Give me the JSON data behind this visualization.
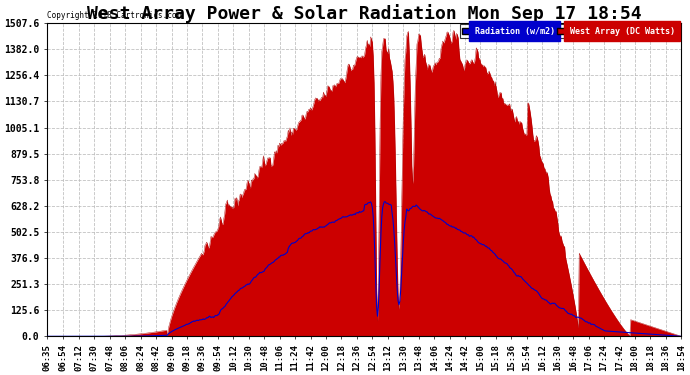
{
  "title": "West Array Power & Solar Radiation Mon Sep 17 18:54",
  "copyright": "Copyright 2018 Cartronics.com",
  "legend_radiation": "Radiation (w/m2)",
  "legend_west_array": "West Array (DC Watts)",
  "legend_radiation_bg": "#0000cc",
  "legend_west_array_bg": "#cc0000",
  "radiation_color": "#cc0000",
  "west_array_color": "#0000cc",
  "west_array_fill": "#cc0000",
  "yticks": [
    0.0,
    125.6,
    251.3,
    376.9,
    502.5,
    628.2,
    753.8,
    879.5,
    1005.1,
    1130.7,
    1256.4,
    1382.0,
    1507.6
  ],
  "ylim": [
    0,
    1507.6
  ],
  "background_color": "#ffffff",
  "plot_bg": "#ffffff",
  "grid_color": "#bbbbbb",
  "title_fontsize": 13,
  "xlabel_fontsize": 6.5,
  "ylabel_fontsize": 7
}
